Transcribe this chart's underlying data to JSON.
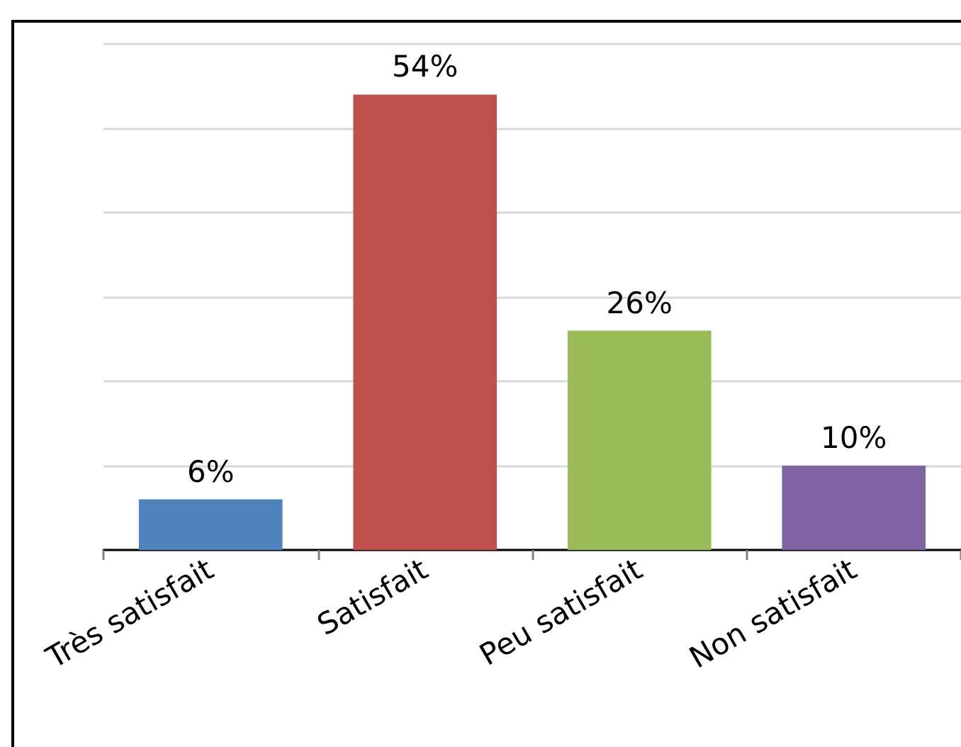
{
  "chart_data": {
    "type": "bar",
    "categories": [
      "Très satisfait",
      "Satisfait",
      "Peu satisfait",
      "Non satisfait"
    ],
    "values": [
      6,
      54,
      26,
      10
    ],
    "colors": [
      "#4f81bd",
      "#c0504d",
      "#9bbb59",
      "#8064a2"
    ],
    "value_labels": [
      "6%",
      "54%",
      "26%",
      "10%"
    ],
    "ylim": [
      0,
      60
    ],
    "yticks": [
      {
        "value": 0,
        "label": null
      },
      {
        "value": 10,
        "label": null
      },
      {
        "value": 20,
        "label": null
      },
      {
        "value": 30,
        "label": null
      },
      {
        "value": 40,
        "label": null
      },
      {
        "value": 50,
        "label": null
      },
      {
        "value": 60,
        "label": null
      }
    ],
    "grid": "y",
    "tick_labels": "x"
  }
}
